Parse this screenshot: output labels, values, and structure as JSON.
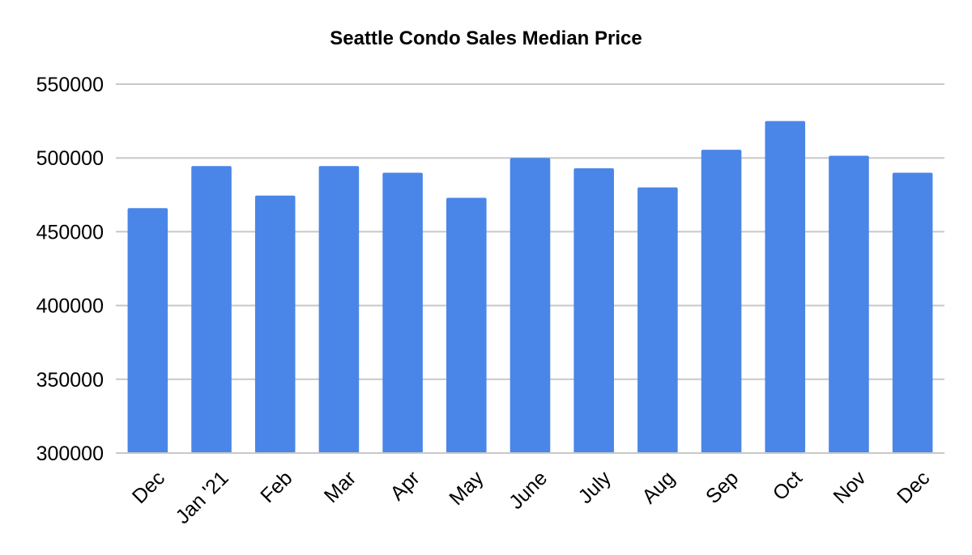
{
  "chart_data": {
    "type": "bar",
    "title": "Seattle Condo Sales Median Price",
    "xlabel": "",
    "ylabel": "",
    "categories": [
      "Dec",
      "Jan '21",
      "Feb",
      "Mar",
      "Apr",
      "May",
      "June",
      "July",
      "Aug",
      "Sep",
      "Oct",
      "Nov",
      "Dec"
    ],
    "values": [
      466000,
      494500,
      474500,
      494500,
      490000,
      473000,
      500000,
      493000,
      480000,
      505500,
      525000,
      501500,
      490000
    ],
    "ylim": [
      300000,
      550000
    ],
    "yticks": [
      300000,
      350000,
      400000,
      450000,
      500000,
      550000
    ],
    "ytick_labels": [
      "300000",
      "350000",
      "400000",
      "450000",
      "500000",
      "550000"
    ],
    "grid": true,
    "legend": "none",
    "colors": {
      "bar": "#4a86e8",
      "grid": "#c8c8c8",
      "text": "#000000"
    }
  }
}
